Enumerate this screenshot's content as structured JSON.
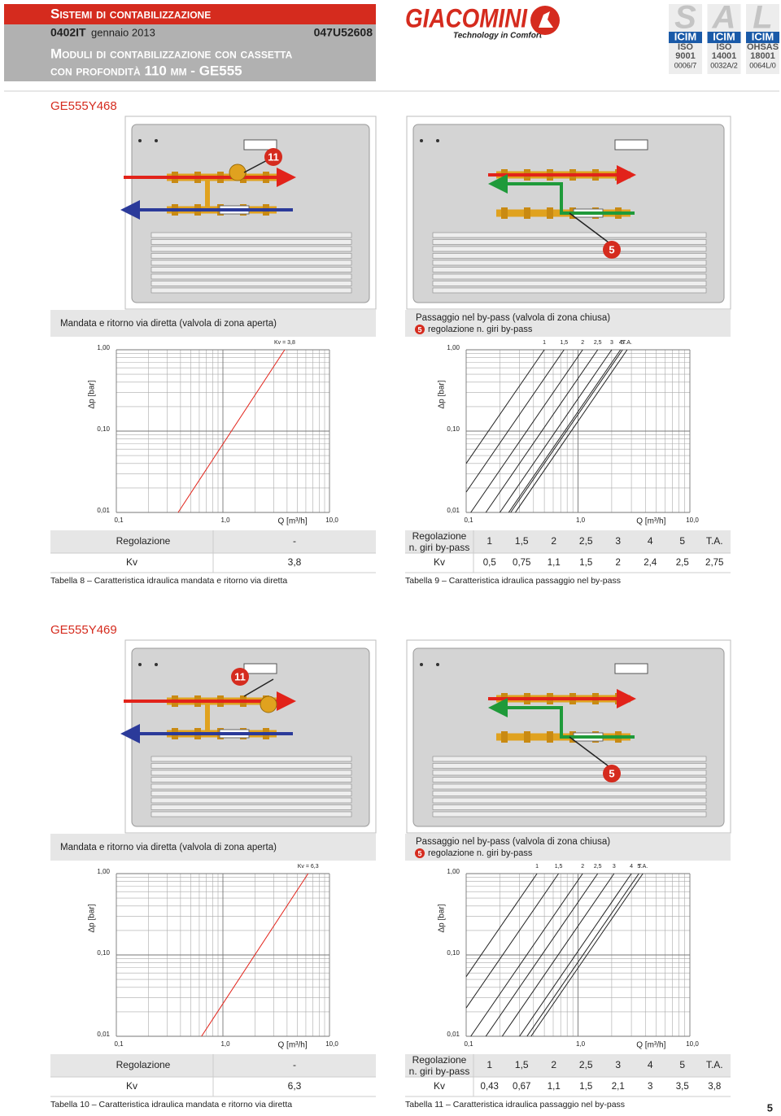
{
  "header": {
    "title": "Sistemi di contabilizzazione",
    "code": "0402IT",
    "date": "gennaio 2013",
    "article": "047U52608",
    "subtitle_1": "Moduli di contabilizzazione con cassetta",
    "subtitle_2": "con profondità 110 mm - GE555"
  },
  "logo": {
    "brand": "GIACOMINI",
    "tagline": "Technology in Comfort"
  },
  "certifications": [
    {
      "letter": "S",
      "body": "ICIM",
      "standard": "ISO",
      "number": "9001",
      "code": "0006/7"
    },
    {
      "letter": "A",
      "body": "ICIM",
      "standard": "ISO",
      "number": "14001",
      "code": "0032A/2"
    },
    {
      "letter": "L",
      "body": "ICIM",
      "standard": "OHSAS",
      "number": "18001",
      "code": "0064L/0"
    }
  ],
  "sections": [
    {
      "product": "GE555Y468",
      "diagrams": [
        {
          "badge": "11"
        },
        {
          "badge": "5"
        }
      ],
      "direct": {
        "title": "Mandata e ritorno via diretta (valvola di zona aperta)",
        "kv_label": "Kv = 3,8",
        "y_label": "Δp [bar]",
        "x_label": "Q [m³/h]",
        "yticks": [
          "1,00",
          "0,10",
          "0,01"
        ],
        "xticks": [
          "0,1",
          "1,0",
          "10,0"
        ],
        "table": [
          [
            "Regolazione",
            "-"
          ],
          [
            "Kv",
            "3,8"
          ]
        ],
        "caption": "Tabella 8 – Caratteristica idraulica mandata e ritorno via diretta"
      },
      "bypass": {
        "title": "Passaggio nel by-pass (valvola di zona chiusa)",
        "badge": "5",
        "note": "regolazione n. giri by-pass",
        "y_label": "Δp [bar]",
        "x_label": "Q [m³/h]",
        "yticks": [
          "1,00",
          "0,10",
          "0,01"
        ],
        "xticks": [
          "0,1",
          "1,0",
          "10,0"
        ],
        "row_label": [
          "Regolazione",
          "n. giri by-pass"
        ],
        "settings": [
          "1",
          "1,5",
          "2",
          "2,5",
          "3",
          "4",
          "5",
          "T.A."
        ],
        "kv_label": "Kv",
        "kv": [
          "0,5",
          "0,75",
          "1,1",
          "1,5",
          "2",
          "2,4",
          "2,5",
          "2,75"
        ],
        "caption": "Tabella 9 – Caratteristica idraulica passaggio nel by-pass"
      }
    },
    {
      "product": "GE555Y469",
      "diagrams": [
        {
          "badge": "11"
        },
        {
          "badge": "5"
        }
      ],
      "direct": {
        "title": "Mandata e ritorno via diretta (valvola di zona aperta)",
        "kv_label": "Kv = 6,3",
        "y_label": "Δp [bar]",
        "x_label": "Q [m³/h]",
        "yticks": [
          "1,00",
          "0,10",
          "0,01"
        ],
        "xticks": [
          "0,1",
          "1,0",
          "10,0"
        ],
        "table": [
          [
            "Regolazione",
            "-"
          ],
          [
            "Kv",
            "6,3"
          ]
        ],
        "caption": "Tabella 10 – Caratteristica idraulica mandata e ritorno via diretta"
      },
      "bypass": {
        "title": "Passaggio nel by-pass (valvola di zona chiusa)",
        "badge": "5",
        "note": "regolazione n. giri by-pass",
        "y_label": "Δp [bar]",
        "x_label": "Q [m³/h]",
        "yticks": [
          "1,00",
          "0,10",
          "0,01"
        ],
        "xticks": [
          "0,1",
          "1,0",
          "10,0"
        ],
        "row_label": [
          "Regolazione",
          "n. giri by-pass"
        ],
        "settings": [
          "1",
          "1,5",
          "2",
          "2,5",
          "3",
          "4",
          "5",
          "T.A."
        ],
        "kv_label": "Kv",
        "kv": [
          "0,43",
          "0,67",
          "1,1",
          "1,5",
          "2,1",
          "3",
          "3,5",
          "3,8"
        ],
        "caption": "Tabella 11 – Caratteristica idraulica passaggio nel by-pass"
      }
    }
  ],
  "page_number": "5"
}
